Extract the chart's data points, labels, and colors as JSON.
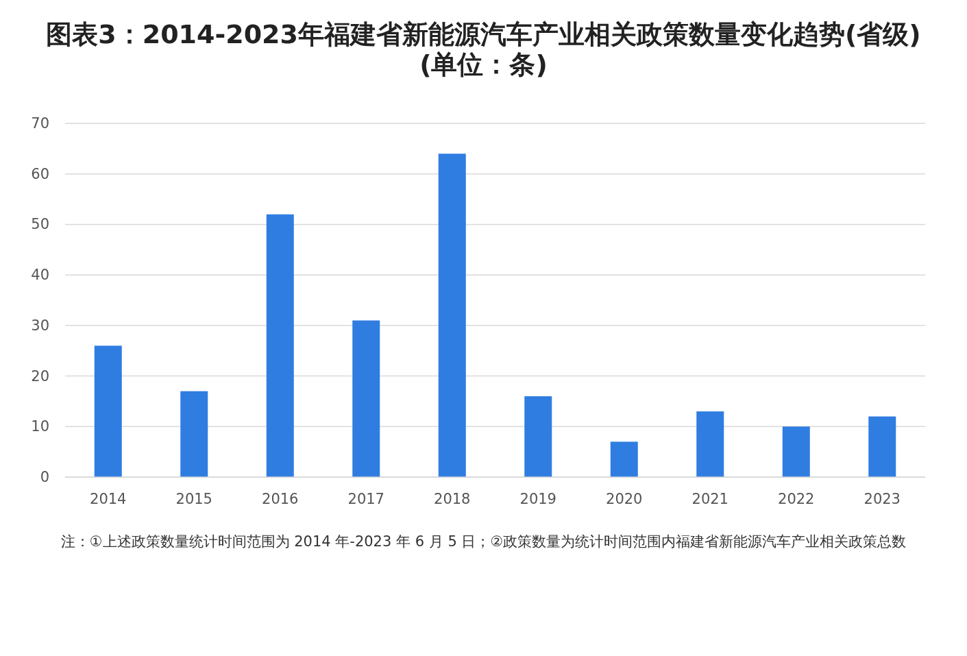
{
  "chart_data": {
    "type": "bar",
    "title": "图表3：2014-2023年福建省新能源汽车产业相关政策数量变化趋势(省级)(单位：条)",
    "categories": [
      "2014",
      "2015",
      "2016",
      "2017",
      "2018",
      "2019",
      "2020",
      "2021",
      "2022",
      "2023"
    ],
    "values": [
      26,
      17,
      52,
      31,
      64,
      16,
      7,
      13,
      10,
      12
    ],
    "color": "#2f7de1",
    "ylim": [
      0,
      70
    ],
    "yticks": [
      0,
      10,
      20,
      30,
      40,
      50,
      60,
      70
    ],
    "grid": "y",
    "annotations": [
      "注：①上述政策数量统计时间范围为 2014 年-2023 年 6 月 5 日；②政策数量为统计时间范围内福建省新能源汽车产业相关政策总数"
    ]
  }
}
